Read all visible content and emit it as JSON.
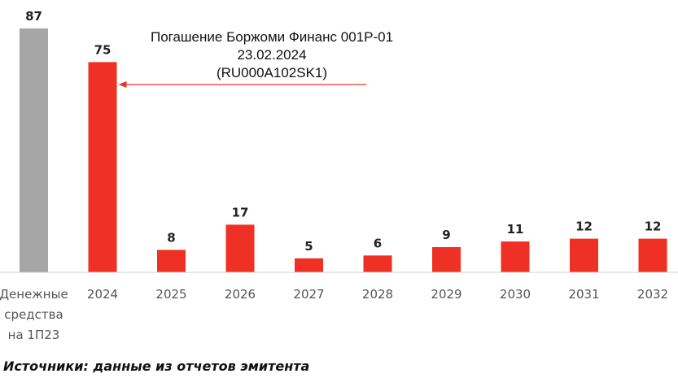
{
  "chart_data": {
    "type": "bar",
    "categories": [
      [
        "Денежные",
        "средства",
        "на 1П23"
      ],
      [
        "2024"
      ],
      [
        "2025"
      ],
      [
        "2026"
      ],
      [
        "2027"
      ],
      [
        "2028"
      ],
      [
        "2029"
      ],
      [
        "2030"
      ],
      [
        "2031"
      ],
      [
        "2032"
      ]
    ],
    "values": [
      87,
      75,
      8,
      17,
      5,
      6,
      9,
      11,
      12,
      12
    ],
    "value_labels": [
      "87",
      "75",
      "8",
      "17",
      "5",
      "6",
      "9",
      "11",
      "12",
      "12"
    ],
    "bar_colors": [
      "#a6a6a6",
      "#ee3124",
      "#ee3124",
      "#ee3124",
      "#ee3124",
      "#ee3124",
      "#ee3124",
      "#ee3124",
      "#ee3124",
      "#ee3124"
    ],
    "ylim": [
      0,
      87
    ],
    "grid": false,
    "annotation": {
      "lines": [
        "Погашение Боржоми Финанс 001Р-01",
        "23.02.2024",
        "(RU000A102SK1)"
      ],
      "arrow_color": "#ee3124",
      "target_category": "2024"
    }
  },
  "footer": {
    "source_note": "Источники: данные из отчетов эмитента"
  }
}
